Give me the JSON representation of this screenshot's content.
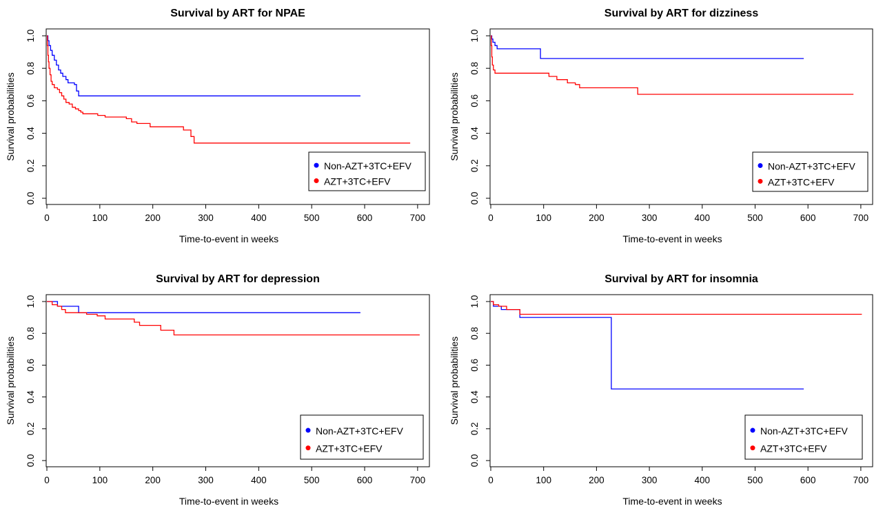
{
  "chart_data": [
    {
      "type": "line",
      "title": "Survival by ART for NPAE",
      "xlabel": "Time-to-event in weeks",
      "ylabel": "Survival probabilities",
      "xlim": [
        0,
        700
      ],
      "ylim": [
        0,
        1
      ],
      "xticks": [
        "0",
        "100",
        "200",
        "300",
        "400",
        "500",
        "600",
        "700"
      ],
      "yticks": [
        "0.0",
        "0.2",
        "0.4",
        "0.6",
        "0.8",
        "1.0"
      ],
      "legend_position": "bottom-right",
      "series": [
        {
          "name": "Non-AZT+3TC+EFV",
          "color": "#0000ff",
          "steps": [
            [
              0,
              1.0
            ],
            [
              2,
              0.97
            ],
            [
              4,
              0.94
            ],
            [
              7,
              0.91
            ],
            [
              10,
              0.88
            ],
            [
              14,
              0.85
            ],
            [
              18,
              0.82
            ],
            [
              22,
              0.79
            ],
            [
              26,
              0.77
            ],
            [
              30,
              0.75
            ],
            [
              36,
              0.73
            ],
            [
              40,
              0.71
            ],
            [
              52,
              0.7
            ],
            [
              56,
              0.66
            ],
            [
              60,
              0.63
            ],
            [
              592,
              0.63
            ]
          ]
        },
        {
          "name": "AZT+3TC+EFV",
          "color": "#ff0000",
          "steps": [
            [
              0,
              1.0
            ],
            [
              1,
              0.94
            ],
            [
              2,
              0.88
            ],
            [
              3,
              0.84
            ],
            [
              4,
              0.8
            ],
            [
              6,
              0.76
            ],
            [
              8,
              0.72
            ],
            [
              10,
              0.7
            ],
            [
              14,
              0.68
            ],
            [
              20,
              0.67
            ],
            [
              24,
              0.65
            ],
            [
              28,
              0.63
            ],
            [
              32,
              0.61
            ],
            [
              36,
              0.59
            ],
            [
              42,
              0.58
            ],
            [
              48,
              0.56
            ],
            [
              54,
              0.55
            ],
            [
              60,
              0.54
            ],
            [
              64,
              0.53
            ],
            [
              68,
              0.52
            ],
            [
              96,
              0.51
            ],
            [
              110,
              0.5
            ],
            [
              150,
              0.49
            ],
            [
              160,
              0.47
            ],
            [
              170,
              0.46
            ],
            [
              195,
              0.44
            ],
            [
              258,
              0.42
            ],
            [
              272,
              0.38
            ],
            [
              278,
              0.34
            ],
            [
              686,
              0.34
            ]
          ]
        }
      ]
    },
    {
      "type": "line",
      "title": "Survival by ART for dizziness",
      "xlabel": "Time-to-event in weeks",
      "ylabel": "Survival probabilities",
      "xlim": [
        0,
        700
      ],
      "ylim": [
        0,
        1
      ],
      "xticks": [
        "0",
        "100",
        "200",
        "300",
        "400",
        "500",
        "600",
        "700"
      ],
      "yticks": [
        "0.0",
        "0.2",
        "0.4",
        "0.6",
        "0.8",
        "1.0"
      ],
      "legend_position": "bottom-right",
      "series": [
        {
          "name": "Non-AZT+3TC+EFV",
          "color": "#0000ff",
          "steps": [
            [
              0,
              1.0
            ],
            [
              2,
              0.98
            ],
            [
              4,
              0.96
            ],
            [
              8,
              0.94
            ],
            [
              12,
              0.92
            ],
            [
              94,
              0.86
            ],
            [
              592,
              0.86
            ]
          ]
        },
        {
          "name": "AZT+3TC+EFV",
          "color": "#ff0000",
          "steps": [
            [
              0,
              1.0
            ],
            [
              1,
              0.94
            ],
            [
              2,
              0.87
            ],
            [
              3,
              0.82
            ],
            [
              5,
              0.79
            ],
            [
              8,
              0.77
            ],
            [
              110,
              0.75
            ],
            [
              125,
              0.73
            ],
            [
              145,
              0.71
            ],
            [
              160,
              0.7
            ],
            [
              168,
              0.68
            ],
            [
              278,
              0.64
            ],
            [
              686,
              0.64
            ]
          ]
        }
      ]
    },
    {
      "type": "line",
      "title": "Survival by ART for depression",
      "xlabel": "Time-to-event in weeks",
      "ylabel": "Survival probabilities",
      "xlim": [
        0,
        700
      ],
      "ylim": [
        0,
        1
      ],
      "xticks": [
        "0",
        "100",
        "200",
        "300",
        "400",
        "500",
        "600",
        "700"
      ],
      "yticks": [
        "0.0",
        "0.2",
        "0.4",
        "0.6",
        "0.8",
        "1.0"
      ],
      "legend_position": "bottom-right",
      "series": [
        {
          "name": "Non-AZT+3TC+EFV",
          "color": "#0000ff",
          "steps": [
            [
              0,
              1.0
            ],
            [
              20,
              0.97
            ],
            [
              60,
              0.93
            ],
            [
              592,
              0.93
            ]
          ]
        },
        {
          "name": "AZT+3TC+EFV",
          "color": "#ff0000",
          "steps": [
            [
              0,
              1.0
            ],
            [
              10,
              0.98
            ],
            [
              20,
              0.97
            ],
            [
              28,
              0.95
            ],
            [
              35,
              0.93
            ],
            [
              75,
              0.92
            ],
            [
              95,
              0.91
            ],
            [
              110,
              0.89
            ],
            [
              165,
              0.87
            ],
            [
              175,
              0.85
            ],
            [
              215,
              0.82
            ],
            [
              240,
              0.79
            ],
            [
              704,
              0.79
            ]
          ]
        }
      ]
    },
    {
      "type": "line",
      "title": "Survival by ART for insomnia",
      "xlabel": "Time-to-event in weeks",
      "ylabel": "Survival probabilities",
      "xlim": [
        0,
        700
      ],
      "ylim": [
        0,
        1
      ],
      "xticks": [
        "0",
        "100",
        "200",
        "300",
        "400",
        "500",
        "600",
        "700"
      ],
      "yticks": [
        "0.0",
        "0.2",
        "0.4",
        "0.6",
        "0.8",
        "1.0"
      ],
      "legend_position": "bottom-right",
      "series": [
        {
          "name": "Non-AZT+3TC+EFV",
          "color": "#0000ff",
          "steps": [
            [
              0,
              1.0
            ],
            [
              5,
              0.97
            ],
            [
              20,
              0.95
            ],
            [
              55,
              0.9
            ],
            [
              228,
              0.45
            ],
            [
              592,
              0.45
            ]
          ]
        },
        {
          "name": "AZT+3TC+EFV",
          "color": "#ff0000",
          "steps": [
            [
              0,
              1.0
            ],
            [
              5,
              0.98
            ],
            [
              15,
              0.97
            ],
            [
              30,
              0.95
            ],
            [
              55,
              0.92
            ],
            [
              702,
              0.92
            ]
          ]
        }
      ]
    }
  ]
}
